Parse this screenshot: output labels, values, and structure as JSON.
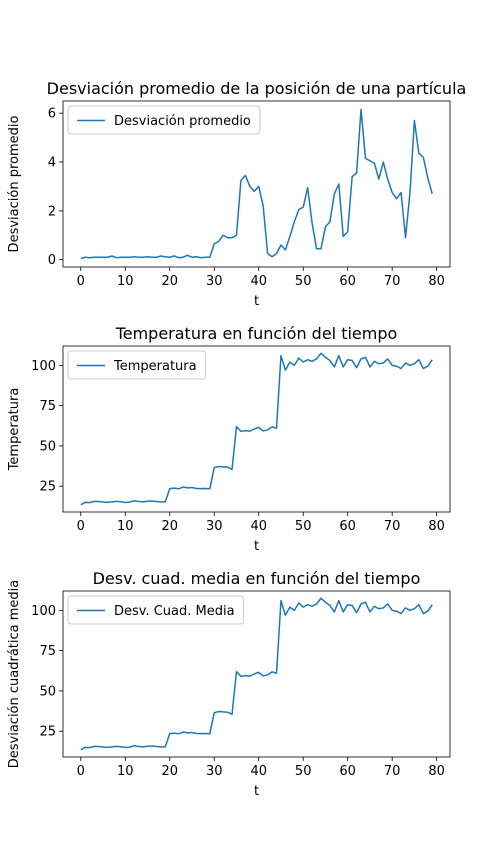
{
  "chart_data": [
    {
      "type": "line",
      "title": "Desviación promedio de la posición de una partícula",
      "xlabel": "t",
      "ylabel": "Desviación promedio",
      "xlim": [
        -4,
        83
      ],
      "ylim": [
        -0.3,
        6.5
      ],
      "xticks": [
        0,
        10,
        20,
        30,
        40,
        50,
        60,
        70,
        80
      ],
      "yticks": [
        0,
        2,
        4,
        6
      ],
      "legend_position": "upper-left",
      "series": [
        {
          "name": "Desviación promedio",
          "color": "#1f77b4",
          "values": [
            0.05,
            0.1,
            0.08,
            0.1,
            0.1,
            0.1,
            0.1,
            0.15,
            0.08,
            0.1,
            0.1,
            0.1,
            0.12,
            0.1,
            0.1,
            0.12,
            0.1,
            0.1,
            0.15,
            0.12,
            0.1,
            0.15,
            0.08,
            0.1,
            0.18,
            0.1,
            0.12,
            0.08,
            0.1,
            0.1,
            0.65,
            0.75,
            1.0,
            0.9,
            0.9,
            1.0,
            3.25,
            3.45,
            3.0,
            2.8,
            3.0,
            2.2,
            0.25,
            0.12,
            0.25,
            0.6,
            0.4,
            0.95,
            1.55,
            2.05,
            2.15,
            2.95,
            1.5,
            0.45,
            0.45,
            1.35,
            1.55,
            2.7,
            3.1,
            0.95,
            1.15,
            3.4,
            3.55,
            6.15,
            4.15,
            4.05,
            3.95,
            3.3,
            4.0,
            3.3,
            2.75,
            2.5,
            2.75,
            0.9,
            2.75,
            5.7,
            4.35,
            4.2,
            3.35,
            2.7
          ]
        }
      ]
    },
    {
      "type": "line",
      "title": "Temperatura en función del tiempo",
      "xlabel": "t",
      "ylabel": "Temperatura",
      "xlim": [
        -4,
        83
      ],
      "ylim": [
        9,
        112
      ],
      "xticks": [
        0,
        10,
        20,
        30,
        40,
        50,
        60,
        70,
        80
      ],
      "yticks": [
        25,
        50,
        75,
        100
      ],
      "legend_position": "upper-left",
      "series": [
        {
          "name": "Temperatura",
          "color": "#1f77b4",
          "values": [
            13.5,
            15.0,
            14.8,
            15.6,
            15.5,
            15.2,
            15.0,
            15.3,
            15.6,
            15.4,
            14.9,
            15.1,
            16.0,
            15.5,
            15.3,
            15.7,
            15.8,
            15.5,
            15.2,
            15.4,
            23.5,
            23.8,
            23.4,
            24.5,
            24.0,
            24.2,
            23.6,
            23.5,
            23.6,
            23.4,
            36.5,
            37.2,
            37.0,
            36.8,
            35.5,
            62.0,
            59.0,
            59.5,
            59.2,
            60.5,
            61.5,
            59.3,
            60.0,
            61.8,
            61.0,
            106.0,
            97.0,
            102.0,
            100.0,
            104.5,
            102.0,
            103.5,
            102.5,
            104.0,
            107.5,
            105.0,
            103.0,
            99.0,
            106.0,
            99.0,
            103.5,
            103.0,
            98.5,
            104.0,
            105.0,
            99.0,
            102.5,
            101.0,
            101.5,
            104.0,
            100.0,
            99.5,
            98.0,
            101.5,
            100.0,
            101.0,
            103.5,
            98.0,
            99.5,
            103.5
          ]
        }
      ]
    },
    {
      "type": "line",
      "title": "Desv. cuad. media en función del tiempo",
      "xlabel": "t",
      "ylabel": "Desviación cuadrática media",
      "xlim": [
        -4,
        83
      ],
      "ylim": [
        9,
        112
      ],
      "xticks": [
        0,
        10,
        20,
        30,
        40,
        50,
        60,
        70,
        80
      ],
      "yticks": [
        25,
        50,
        75,
        100
      ],
      "legend_position": "upper-left",
      "series": [
        {
          "name": "Desv. Cuad. Media",
          "color": "#1f77b4",
          "values": [
            13.5,
            15.0,
            14.8,
            15.6,
            15.5,
            15.2,
            15.0,
            15.3,
            15.6,
            15.4,
            14.9,
            15.1,
            16.0,
            15.5,
            15.3,
            15.7,
            15.8,
            15.5,
            15.2,
            15.4,
            23.5,
            23.8,
            23.4,
            24.5,
            24.0,
            24.2,
            23.6,
            23.5,
            23.6,
            23.4,
            36.5,
            37.2,
            37.0,
            36.8,
            35.5,
            62.0,
            59.0,
            59.5,
            59.2,
            60.5,
            61.5,
            59.3,
            60.0,
            61.8,
            61.0,
            106.0,
            97.0,
            102.0,
            100.0,
            104.5,
            102.0,
            103.5,
            102.5,
            104.0,
            107.5,
            105.0,
            103.0,
            99.0,
            106.0,
            99.0,
            103.5,
            103.0,
            98.5,
            104.0,
            105.0,
            99.0,
            102.5,
            101.0,
            101.5,
            104.0,
            100.0,
            99.5,
            98.0,
            101.5,
            100.0,
            101.0,
            103.5,
            98.0,
            99.5,
            103.5
          ]
        }
      ]
    }
  ]
}
